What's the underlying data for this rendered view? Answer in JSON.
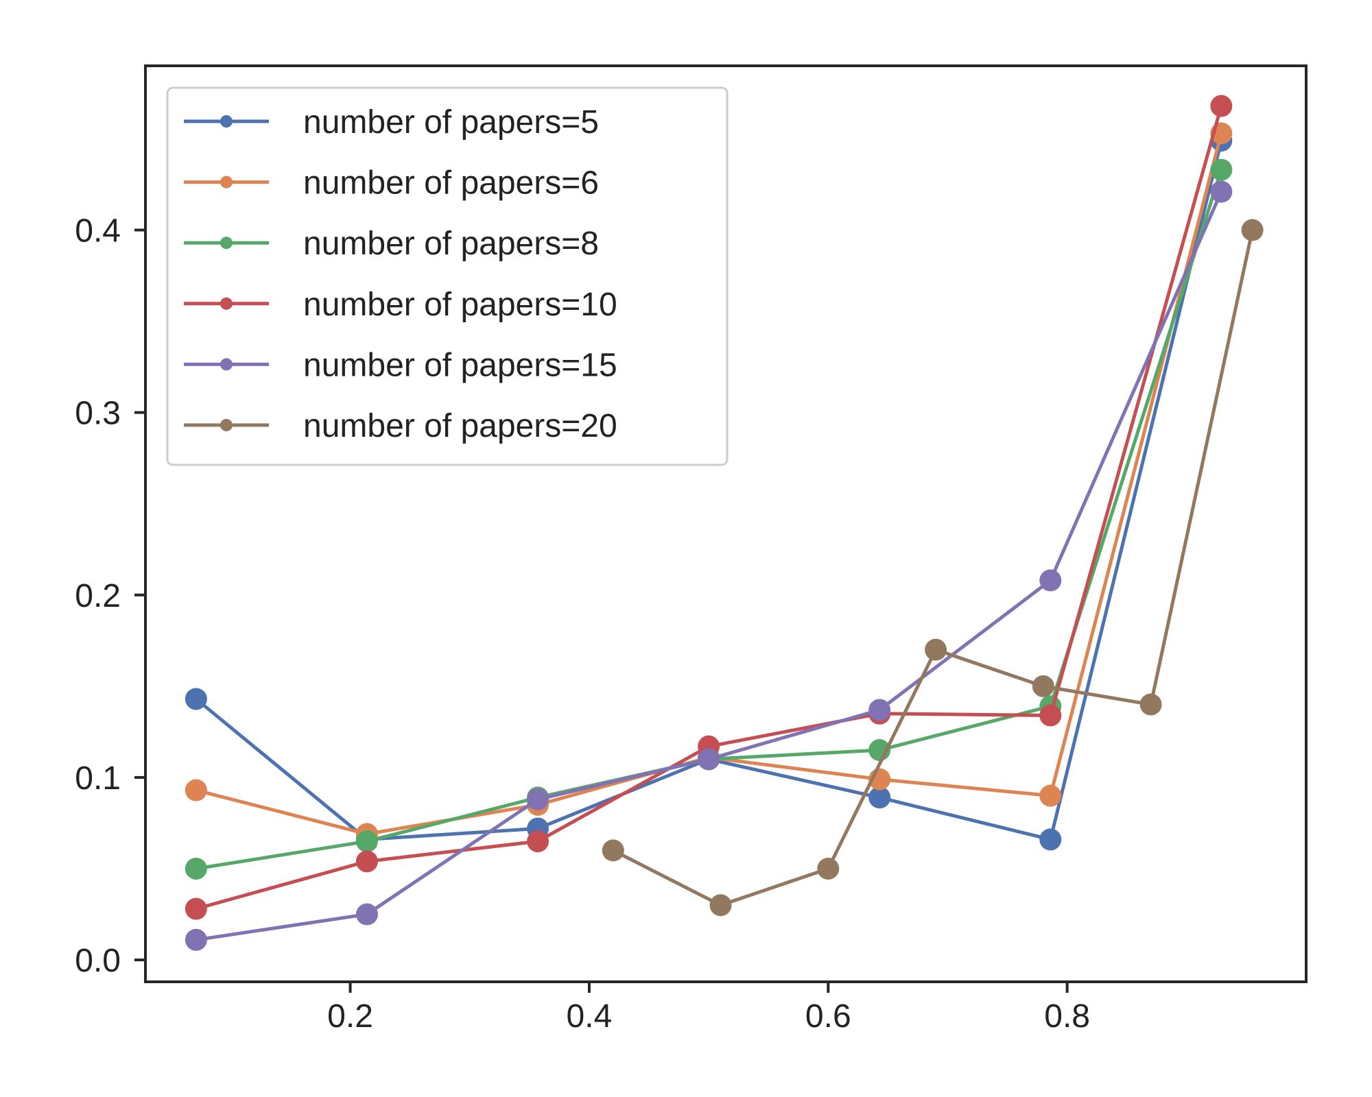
{
  "chart_data": {
    "type": "line",
    "title": "",
    "xlabel": "",
    "ylabel": "",
    "xlim": [
      0.0286,
      1.0
    ],
    "ylim": [
      -0.012,
      0.49
    ],
    "xticks": [
      {
        "value": 0.2,
        "label": "0.2"
      },
      {
        "value": 0.4,
        "label": "0.4"
      },
      {
        "value": 0.6,
        "label": "0.6"
      },
      {
        "value": 0.8,
        "label": "0.8"
      }
    ],
    "yticks": [
      {
        "value": 0.0,
        "label": "0.0"
      },
      {
        "value": 0.1,
        "label": "0.1"
      },
      {
        "value": 0.2,
        "label": "0.2"
      },
      {
        "value": 0.3,
        "label": "0.3"
      },
      {
        "value": 0.4,
        "label": "0.4"
      }
    ],
    "grid": false,
    "legend_position": "upper-left",
    "series": [
      {
        "name": "number of papers=5",
        "color": "#4c72b0",
        "x": [
          0.071,
          0.214,
          0.357,
          0.5,
          0.643,
          0.786,
          0.929
        ],
        "y": [
          0.143,
          0.066,
          0.072,
          0.11,
          0.089,
          0.066,
          0.449
        ]
      },
      {
        "name": "number of papers=6",
        "color": "#dd8452",
        "x": [
          0.071,
          0.214,
          0.357,
          0.5,
          0.643,
          0.786,
          0.929
        ],
        "y": [
          0.093,
          0.069,
          0.085,
          0.111,
          0.099,
          0.09,
          0.453
        ]
      },
      {
        "name": "number of papers=8",
        "color": "#55a868",
        "x": [
          0.071,
          0.214,
          0.357,
          0.5,
          0.643,
          0.786,
          0.929
        ],
        "y": [
          0.05,
          0.065,
          0.089,
          0.11,
          0.115,
          0.139,
          0.433
        ]
      },
      {
        "name": "number of papers=10",
        "color": "#c44e52",
        "x": [
          0.071,
          0.214,
          0.357,
          0.5,
          0.643,
          0.786,
          0.929
        ],
        "y": [
          0.028,
          0.054,
          0.065,
          0.117,
          0.135,
          0.134,
          0.468
        ]
      },
      {
        "name": "number of papers=15",
        "color": "#8172b3",
        "x": [
          0.071,
          0.214,
          0.357,
          0.5,
          0.643,
          0.786,
          0.929
        ],
        "y": [
          0.011,
          0.025,
          0.088,
          0.11,
          0.137,
          0.208,
          0.421
        ]
      },
      {
        "name": "number of papers=20",
        "color": "#937860",
        "x": [
          0.42,
          0.51,
          0.6,
          0.69,
          0.78,
          0.87,
          0.955
        ],
        "y": [
          0.06,
          0.03,
          0.05,
          0.17,
          0.15,
          0.14,
          0.4
        ]
      }
    ]
  }
}
